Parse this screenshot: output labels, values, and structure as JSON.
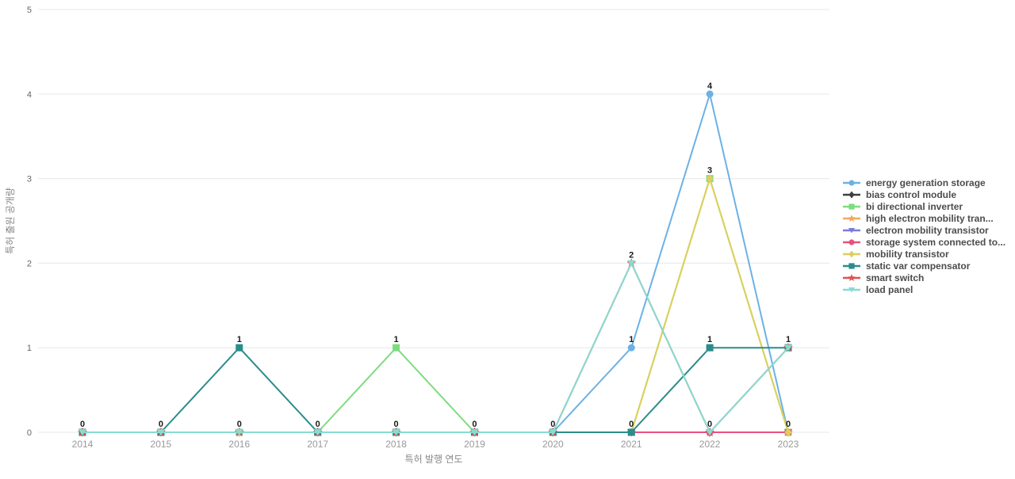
{
  "chart_data": {
    "type": "line",
    "title": "",
    "xlabel": "특허 발행 연도",
    "ylabel": "특허 출원 공개량",
    "categories": [
      2014,
      2015,
      2016,
      2017,
      2018,
      2019,
      2020,
      2021,
      2022,
      2023
    ],
    "ylim": [
      0,
      5
    ],
    "yticks": [
      0,
      1,
      2,
      3,
      4,
      5
    ],
    "grid": true,
    "legend_position": "right",
    "series": [
      {
        "name": "energy generation storage",
        "color": "#6cb1e6",
        "symbol": "circle",
        "values": [
          0,
          0,
          0,
          0,
          0,
          0,
          0,
          1,
          4,
          0
        ]
      },
      {
        "name": "bias control module",
        "color": "#3f3f3f",
        "symbol": "diamond",
        "values": [
          0,
          0,
          0,
          0,
          0,
          0,
          0,
          0,
          0,
          0
        ]
      },
      {
        "name": "bi directional inverter",
        "color": "#7edc80",
        "symbol": "square",
        "values": [
          0,
          0,
          0,
          0,
          1,
          0,
          0,
          0,
          3,
          0
        ]
      },
      {
        "name": "high electron mobility tran...",
        "color": "#f4a85a",
        "symbol": "star",
        "values": [
          0,
          0,
          0,
          0,
          0,
          0,
          0,
          0,
          0,
          0
        ]
      },
      {
        "name": "electron mobility transistor",
        "color": "#7b7bdc",
        "symbol": "triangle-down",
        "values": [
          0,
          0,
          0,
          0,
          0,
          0,
          0,
          0,
          0,
          0
        ]
      },
      {
        "name": "storage system connected to...",
        "color": "#e8517e",
        "symbol": "circle",
        "values": [
          0,
          0,
          0,
          0,
          0,
          0,
          0,
          0,
          0,
          0
        ]
      },
      {
        "name": "mobility transistor",
        "color": "#decf5a",
        "symbol": "diamond",
        "values": [
          0,
          0,
          0,
          0,
          0,
          0,
          0,
          0,
          3,
          0
        ]
      },
      {
        "name": "static var compensator",
        "color": "#2b8c8c",
        "symbol": "square",
        "values": [
          0,
          0,
          1,
          0,
          0,
          0,
          0,
          0,
          1,
          1
        ]
      },
      {
        "name": "smart switch",
        "color": "#e25050",
        "symbol": "star",
        "values": [
          0,
          0,
          0,
          0,
          0,
          0,
          0,
          2,
          0,
          1
        ]
      },
      {
        "name": "load panel",
        "color": "#86dcd2",
        "symbol": "triangle-down",
        "values": [
          0,
          0,
          0,
          0,
          0,
          0,
          0,
          2,
          0,
          1
        ]
      }
    ],
    "colors": {
      "gridline": "#e8e8e8",
      "y_tick_label": "#666666",
      "x_tick_label": "#999999",
      "axis_title": "#888888",
      "value_label": "#1a1a1a",
      "legend_text": "#4c4c4c",
      "background": "#ffffff"
    }
  }
}
